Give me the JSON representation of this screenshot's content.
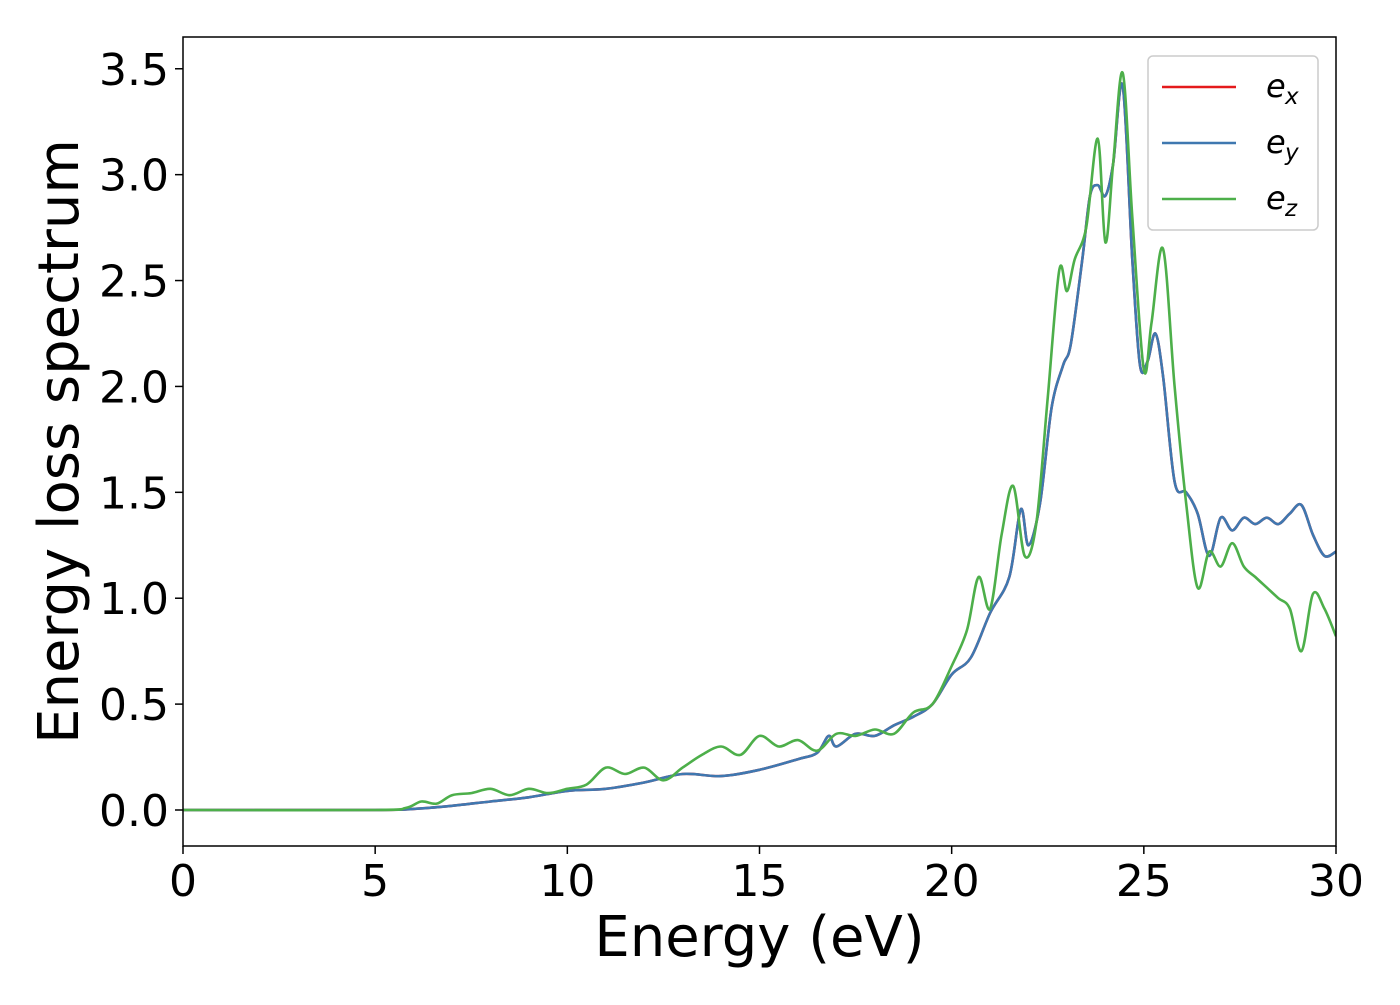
{
  "chart_data": {
    "type": "line",
    "xlabel": "Energy (eV)",
    "ylabel": "Energy loss spectrum",
    "xlim": [
      0,
      30
    ],
    "ylim": [
      -0.17,
      3.65
    ],
    "xticks": [
      0,
      5,
      10,
      15,
      20,
      25,
      30
    ],
    "xtick_labels": [
      "0",
      "5",
      "10",
      "15",
      "20",
      "25",
      "30"
    ],
    "yticks": [
      0.0,
      0.5,
      1.0,
      1.5,
      2.0,
      2.5,
      3.0,
      3.5
    ],
    "ytick_labels": [
      "0.0",
      "0.5",
      "1.0",
      "1.5",
      "2.0",
      "2.5",
      "3.0",
      "3.5"
    ],
    "grid": false,
    "legend_position": "top-right",
    "series": [
      {
        "name": "e",
        "name_sub": "x",
        "color": "#e41a1c",
        "x": [
          0,
          5,
          6,
          7,
          8,
          9,
          10,
          11,
          12,
          13,
          14,
          15,
          16,
          16.5,
          16.8,
          17,
          17.5,
          18,
          18.5,
          19,
          19.5,
          20,
          20.5,
          21,
          21.5,
          21.8,
          22,
          22.3,
          22.6,
          22.9,
          23.1,
          23.4,
          23.6,
          23.8,
          24.0,
          24.2,
          24.45,
          24.7,
          24.9,
          25.1,
          25.3,
          25.5,
          25.8,
          26.1,
          26.4,
          26.7,
          27.0,
          27.3,
          27.6,
          27.9,
          28.2,
          28.5,
          28.8,
          29.1,
          29.4,
          29.7,
          30
        ],
        "y": [
          0.0,
          0.0,
          0.005,
          0.02,
          0.04,
          0.06,
          0.09,
          0.1,
          0.13,
          0.17,
          0.16,
          0.19,
          0.24,
          0.27,
          0.35,
          0.3,
          0.36,
          0.35,
          0.4,
          0.44,
          0.5,
          0.64,
          0.72,
          0.93,
          1.1,
          1.42,
          1.25,
          1.45,
          1.9,
          2.1,
          2.2,
          2.6,
          2.9,
          2.95,
          2.9,
          3.05,
          3.42,
          2.6,
          2.1,
          2.12,
          2.25,
          2.05,
          1.55,
          1.5,
          1.4,
          1.2,
          1.38,
          1.32,
          1.38,
          1.35,
          1.38,
          1.35,
          1.4,
          1.44,
          1.3,
          1.2,
          1.22
        ]
      },
      {
        "name": "e",
        "name_sub": "y",
        "color": "#3f78b0",
        "x": [
          0,
          5,
          6,
          7,
          8,
          9,
          10,
          11,
          12,
          13,
          14,
          15,
          16,
          16.5,
          16.8,
          17,
          17.5,
          18,
          18.5,
          19,
          19.5,
          20,
          20.5,
          21,
          21.5,
          21.8,
          22,
          22.3,
          22.6,
          22.9,
          23.1,
          23.4,
          23.6,
          23.8,
          24.0,
          24.2,
          24.45,
          24.7,
          24.9,
          25.1,
          25.3,
          25.5,
          25.8,
          26.1,
          26.4,
          26.7,
          27.0,
          27.3,
          27.6,
          27.9,
          28.2,
          28.5,
          28.8,
          29.1,
          29.4,
          29.7,
          30
        ],
        "y": [
          0.0,
          0.0,
          0.005,
          0.02,
          0.04,
          0.06,
          0.09,
          0.1,
          0.13,
          0.17,
          0.16,
          0.19,
          0.24,
          0.27,
          0.35,
          0.3,
          0.36,
          0.35,
          0.4,
          0.44,
          0.5,
          0.64,
          0.72,
          0.93,
          1.1,
          1.42,
          1.25,
          1.45,
          1.9,
          2.1,
          2.2,
          2.6,
          2.9,
          2.95,
          2.9,
          3.05,
          3.42,
          2.6,
          2.1,
          2.12,
          2.25,
          2.05,
          1.55,
          1.5,
          1.4,
          1.2,
          1.38,
          1.32,
          1.38,
          1.35,
          1.38,
          1.35,
          1.4,
          1.44,
          1.3,
          1.2,
          1.22
        ]
      },
      {
        "name": "e",
        "name_sub": "z",
        "color": "#4daf4a",
        "x": [
          0,
          5,
          5.8,
          6.2,
          6.6,
          7,
          7.5,
          8,
          8.5,
          9,
          9.5,
          10,
          10.5,
          11,
          11.5,
          12,
          12.5,
          13,
          13.5,
          14,
          14.5,
          15,
          15.5,
          16,
          16.5,
          17,
          17.5,
          18,
          18.5,
          19,
          19.5,
          20,
          20.4,
          20.7,
          21.0,
          21.3,
          21.6,
          21.9,
          22.2,
          22.5,
          22.8,
          23.0,
          23.2,
          23.5,
          23.8,
          24.0,
          24.2,
          24.45,
          24.7,
          25.0,
          25.2,
          25.5,
          25.8,
          26.1,
          26.4,
          26.7,
          27.0,
          27.3,
          27.6,
          27.9,
          28.2,
          28.5,
          28.8,
          29.1,
          29.4,
          29.7,
          30
        ],
        "y": [
          0.0,
          0.0,
          0.01,
          0.04,
          0.03,
          0.07,
          0.08,
          0.1,
          0.07,
          0.1,
          0.08,
          0.1,
          0.12,
          0.2,
          0.17,
          0.2,
          0.14,
          0.2,
          0.26,
          0.3,
          0.26,
          0.35,
          0.3,
          0.33,
          0.28,
          0.36,
          0.35,
          0.38,
          0.36,
          0.46,
          0.5,
          0.68,
          0.85,
          1.1,
          0.95,
          1.3,
          1.53,
          1.2,
          1.35,
          1.95,
          2.55,
          2.45,
          2.6,
          2.75,
          3.17,
          2.68,
          3.05,
          3.48,
          2.8,
          2.08,
          2.3,
          2.65,
          2.0,
          1.45,
          1.05,
          1.22,
          1.15,
          1.26,
          1.15,
          1.1,
          1.05,
          1.0,
          0.95,
          0.75,
          1.02,
          0.95,
          0.82
        ]
      }
    ]
  }
}
